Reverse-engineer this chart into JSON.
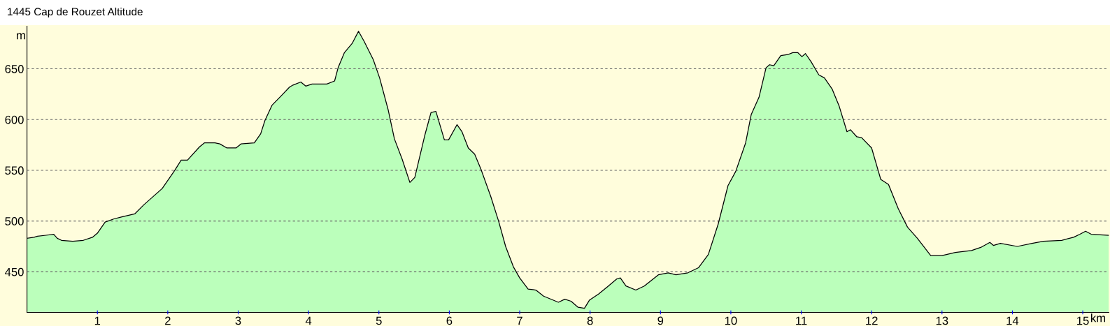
{
  "chart_data": {
    "type": "area",
    "title": "1445 Cap de Rouzet Altitude",
    "xlabel": "km",
    "ylabel": "m",
    "x": [
      0,
      0.1,
      0.15,
      0.27,
      0.38,
      0.43,
      0.49,
      0.65,
      0.8,
      0.93,
      1.0,
      1.11,
      1.23,
      1.34,
      1.53,
      1.66,
      1.92,
      2.1,
      2.19,
      2.28,
      2.45,
      2.52,
      2.67,
      2.74,
      2.84,
      2.97,
      3.04,
      3.23,
      3.32,
      3.38,
      3.48,
      3.62,
      3.73,
      3.78,
      3.89,
      3.96,
      4.05,
      4.26,
      4.37,
      4.42,
      4.51,
      4.62,
      4.71,
      4.79,
      4.92,
      5.01,
      5.13,
      5.22,
      5.33,
      5.44,
      5.51,
      5.65,
      5.74,
      5.81,
      5.93,
      5.99,
      6.11,
      6.18,
      6.27,
      6.36,
      6.45,
      6.59,
      6.7,
      6.8,
      6.91,
      7.0,
      7.12,
      7.23,
      7.34,
      7.55,
      7.64,
      7.73,
      7.83,
      7.92,
      7.99,
      8.12,
      8.26,
      8.38,
      8.43,
      8.51,
      8.65,
      8.77,
      8.97,
      9.11,
      9.22,
      9.39,
      9.54,
      9.68,
      9.82,
      9.96,
      10.07,
      10.21,
      10.29,
      10.4,
      10.5,
      10.55,
      10.61,
      10.71,
      10.81,
      10.88,
      10.95,
      11.01,
      11.06,
      11.14,
      11.25,
      11.33,
      11.44,
      11.54,
      11.65,
      11.7,
      11.79,
      11.86,
      12.0,
      12.13,
      12.24,
      12.38,
      12.51,
      12.65,
      12.84,
      13.0,
      13.19,
      13.42,
      13.55,
      13.68,
      13.73,
      13.83,
      14.07,
      14.28,
      14.44,
      14.7,
      14.87,
      14.96,
      15.04,
      15.12,
      15.37
    ],
    "series": [
      {
        "color": "#bbffbb",
        "values": [
          483,
          484,
          485,
          486,
          487,
          483,
          481,
          480,
          481,
          484,
          488,
          499,
          502,
          504,
          507,
          516,
          532,
          550,
          560,
          560,
          573,
          577,
          577,
          576,
          572,
          572,
          576,
          577,
          586,
          599,
          614,
          624,
          632,
          634,
          637,
          633,
          635,
          635,
          638,
          651,
          666,
          675,
          687,
          677,
          659,
          641,
          610,
          581,
          561,
          538,
          543,
          584,
          607,
          608,
          580,
          580,
          595,
          588,
          572,
          566,
          551,
          524,
          500,
          475,
          455,
          444,
          433,
          432,
          426,
          420,
          423,
          421,
          415,
          414,
          422,
          428,
          436,
          443,
          444,
          436,
          432,
          436,
          447,
          449,
          447,
          449,
          454,
          467,
          497,
          535,
          549,
          577,
          605,
          622,
          651,
          654,
          653,
          663,
          664,
          666,
          666,
          662,
          665,
          657,
          644,
          641,
          630,
          613,
          588,
          590,
          583,
          582,
          572,
          541,
          536,
          512,
          494,
          483,
          466,
          466,
          469,
          471,
          474,
          479,
          476,
          478,
          475,
          478,
          480,
          481,
          484,
          487,
          490,
          487,
          486
        ]
      }
    ],
    "xlim": [
      0,
      15.37
    ],
    "xticks": [
      1,
      2,
      3,
      4,
      5,
      6,
      7,
      8,
      9,
      10,
      11,
      12,
      13,
      14,
      15
    ],
    "ylim": [
      410,
      692
    ],
    "yticks": [
      450,
      500,
      550,
      600,
      650
    ],
    "grid": "y",
    "line_style": "dashed"
  }
}
